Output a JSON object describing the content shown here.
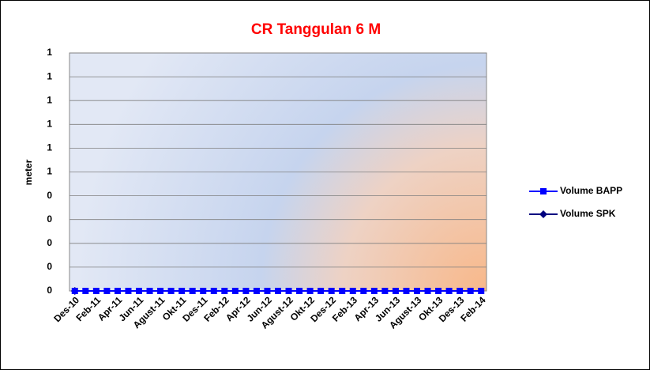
{
  "chart_data": {
    "type": "line",
    "title": "CR Tanggulan 6 M",
    "y_label": "meter",
    "categories": [
      "Des-10",
      null,
      "Feb-11",
      null,
      "Apr-11",
      null,
      "Jun-11",
      null,
      "Agust-11",
      null,
      "Okt-11",
      null,
      "Des-11",
      null,
      "Feb-12",
      null,
      "Apr-12",
      null,
      "Jun-12",
      null,
      "Agust-12",
      null,
      "Okt-12",
      null,
      "Des-12",
      null,
      "Feb-13",
      null,
      "Apr-13",
      null,
      "Jun-13",
      null,
      "Agust-13",
      null,
      "Okt-13",
      null,
      "Des-13",
      null,
      "Feb-14"
    ],
    "series": [
      {
        "name": "Volume BAPP",
        "color": "#0000ff",
        "marker": "square",
        "values": [
          0,
          0,
          0,
          0,
          0,
          0,
          0,
          0,
          0,
          0,
          0,
          0,
          0,
          0,
          0,
          0,
          0,
          0,
          0,
          0,
          0,
          0,
          0,
          0,
          0,
          0,
          0,
          0,
          0,
          0,
          0,
          0,
          0,
          0,
          0,
          0,
          0,
          0,
          0
        ]
      },
      {
        "name": "Volume SPK",
        "color": "#000080",
        "marker": "diamond",
        "values": [
          0,
          null,
          null,
          null,
          null,
          null,
          null,
          null,
          null,
          null,
          null,
          null,
          null,
          null,
          null,
          null,
          null,
          null,
          null,
          null,
          null,
          null,
          null,
          null,
          null,
          null,
          null,
          null,
          null,
          null,
          null,
          null,
          null,
          null,
          null,
          null,
          null,
          null,
          null
        ]
      }
    ],
    "ylim": [
      0,
      1
    ],
    "yticks": [
      {
        "value": 0,
        "label": "0"
      },
      {
        "value": 0.1,
        "label": "0"
      },
      {
        "value": 0.2,
        "label": "0"
      },
      {
        "value": 0.3,
        "label": "0"
      },
      {
        "value": 0.4,
        "label": "0"
      },
      {
        "value": 0.5,
        "label": "1"
      },
      {
        "value": 0.6,
        "label": "1"
      },
      {
        "value": 0.7,
        "label": "1"
      },
      {
        "value": 0.8,
        "label": "1"
      },
      {
        "value": 0.9,
        "label": "1"
      },
      {
        "value": 1,
        "label": "1"
      }
    ],
    "grid": true,
    "legend": "right",
    "title_color": "#ff0000"
  }
}
